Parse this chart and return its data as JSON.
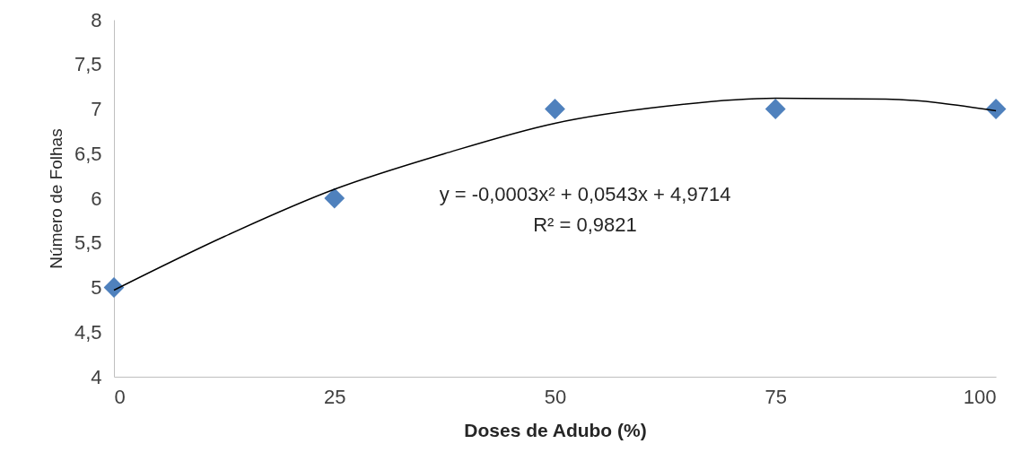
{
  "chart_data": {
    "type": "scatter",
    "xlabel": "Doses de Adubo (%)",
    "ylabel": "Número de Folhas",
    "x": [
      0,
      25,
      50,
      75,
      100
    ],
    "series": [
      {
        "color": "#4f81bd",
        "values": [
          5,
          6,
          7,
          7,
          7
        ]
      },
      {
        "type": "line",
        "marker": "none",
        "color": "#000000",
        "x": [
          0,
          12.5,
          25,
          37.5,
          50,
          62.5,
          75,
          87.5,
          100
        ],
        "values": [
          4.97,
          5.57,
          6.1,
          6.5,
          6.84,
          7.03,
          7.12,
          7.11,
          6.98
        ]
      }
    ],
    "xlim": [
      0,
      100
    ],
    "xticks": [
      0,
      25,
      50,
      75,
      100
    ],
    "ylim": [
      4,
      8
    ],
    "yticks": [
      4,
      {
        "value": 4.5,
        "label": "4,5"
      },
      5,
      {
        "value": 5.5,
        "label": "5,5"
      },
      6,
      {
        "value": 6.5,
        "label": "6,5"
      },
      7,
      {
        "value": 7.5,
        "label": "7,5"
      },
      8
    ],
    "marker": "diamond",
    "line_style": "solid",
    "grid": false,
    "annotations": [
      "y = -0,0003x² + 0,0543x + 4,9714",
      "R² = 0,9821"
    ]
  }
}
